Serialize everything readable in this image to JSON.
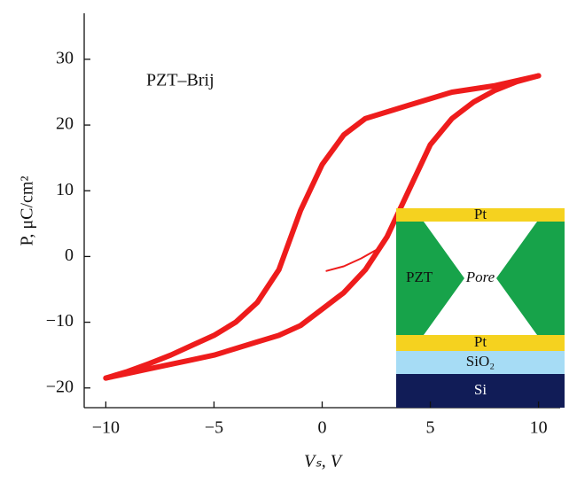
{
  "chart_data": {
    "type": "line",
    "annotation": "PZT–Brij",
    "xlabel": "Vₛ, V",
    "ylabel": "P, μC/cm²",
    "xlim": [
      -11,
      11
    ],
    "ylim": [
      -23,
      37
    ],
    "xticks": [
      {
        "value": -10,
        "label": "−10"
      },
      {
        "value": -5,
        "label": "−5"
      },
      0,
      5,
      10
    ],
    "yticks": [
      {
        "value": -20,
        "label": "−20"
      },
      {
        "value": -10,
        "label": "−10"
      },
      0,
      10,
      20,
      30
    ],
    "series": [
      {
        "color": "#ee1c1c",
        "x": [
          10,
          8,
          6,
          5,
          4,
          3,
          2,
          1,
          0,
          -1,
          -2,
          -3,
          -4,
          -5,
          -6,
          -7,
          -8,
          -9,
          -10
        ],
        "values": [
          27.5,
          26,
          25,
          24,
          23,
          22,
          21,
          18.5,
          14,
          7,
          -2,
          -7,
          -10,
          -12,
          -13.5,
          -15,
          -16.3,
          -17.5,
          -18.5
        ]
      },
      {
        "color": "#ee1c1c",
        "x": [
          -10,
          -9,
          -8,
          -7,
          -6,
          -5,
          -4,
          -3,
          -2,
          -1,
          0,
          1,
          2,
          3,
          4,
          5,
          6,
          7,
          8,
          9,
          10
        ],
        "values": [
          -18.5,
          -17.8,
          -17.1,
          -16.4,
          -15.7,
          -15,
          -14,
          -13,
          -12,
          -10.5,
          -8,
          -5.5,
          -2,
          3,
          10,
          17,
          21,
          23.5,
          25.3,
          26.6,
          27.5
        ]
      },
      {
        "color": "#ee1c1c",
        "x": [
          0.2,
          1,
          1.8,
          2.5
        ],
        "values": [
          -2.2,
          -1.5,
          -0.3,
          1
        ]
      }
    ],
    "inset": {
      "top_electrode": "Pt",
      "film": "PZT",
      "pore": "Pore",
      "bottom_electrode": "Pt",
      "oxide": "SiO₂",
      "substrate": "Si"
    }
  }
}
